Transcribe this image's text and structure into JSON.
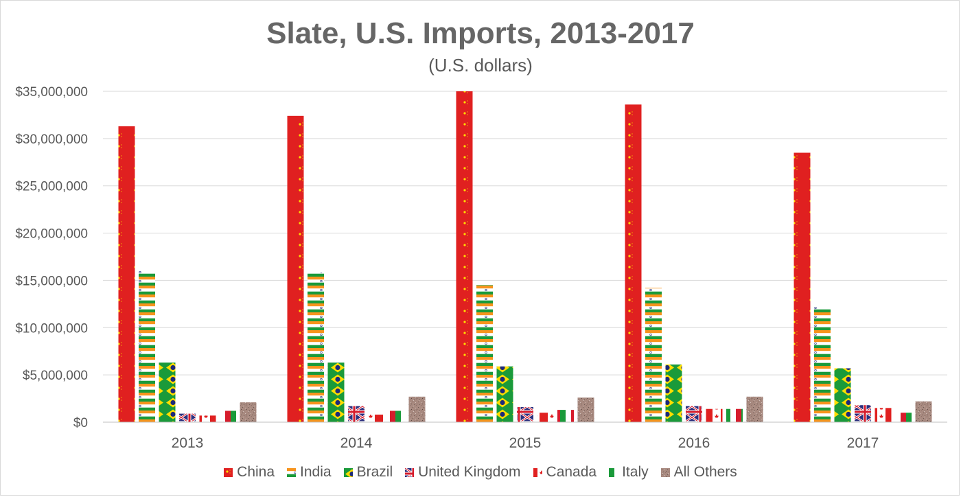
{
  "chart_data": {
    "type": "bar",
    "title": "Slate, U.S. Imports, 2013-2017",
    "subtitle": "(U.S. dollars)",
    "xlabel": "",
    "ylabel": "",
    "categories": [
      "2013",
      "2014",
      "2015",
      "2016",
      "2017"
    ],
    "ylim": [
      0,
      35000000
    ],
    "yticks": [
      {
        "value": 0,
        "label": "$0"
      },
      {
        "value": 5000000,
        "label": "$5,000,000"
      },
      {
        "value": 10000000,
        "label": "$10,000,000"
      },
      {
        "value": 15000000,
        "label": "$15,000,000"
      },
      {
        "value": 20000000,
        "label": "$20,000,000"
      },
      {
        "value": 25000000,
        "label": "$25,000,000"
      },
      {
        "value": 30000000,
        "label": "$30,000,000"
      },
      {
        "value": 35000000,
        "label": "$35,000,000"
      }
    ],
    "grid": true,
    "legend_position": "bottom",
    "series": [
      {
        "name": "China",
        "color": "#e02020",
        "pattern": "china-flag",
        "values": [
          31300000,
          32400000,
          35000000,
          33600000,
          28500000
        ]
      },
      {
        "name": "India",
        "color": "#f7941d",
        "pattern": "india-flag",
        "values": [
          16000000,
          15800000,
          14500000,
          14200000,
          12200000
        ]
      },
      {
        "name": "Brazil",
        "color": "#1a9a3a",
        "pattern": "brazil-flag",
        "values": [
          6300000,
          6300000,
          5900000,
          6100000,
          5700000
        ]
      },
      {
        "name": "United Kingdom",
        "color": "#2b2f7e",
        "pattern": "uk-flag",
        "values": [
          900000,
          1700000,
          1600000,
          1700000,
          1800000
        ]
      },
      {
        "name": "Canada",
        "color": "#e02020",
        "pattern": "canada-flag",
        "values": [
          700000,
          800000,
          1000000,
          1400000,
          1500000
        ]
      },
      {
        "name": "Italy",
        "color": "#1a9a3a",
        "pattern": "italy-flag",
        "values": [
          1200000,
          1200000,
          1300000,
          1400000,
          1000000
        ]
      },
      {
        "name": "All Others",
        "color": "#a88a80",
        "pattern": "granite",
        "values": [
          2100000,
          2700000,
          2600000,
          2700000,
          2200000
        ]
      }
    ]
  }
}
